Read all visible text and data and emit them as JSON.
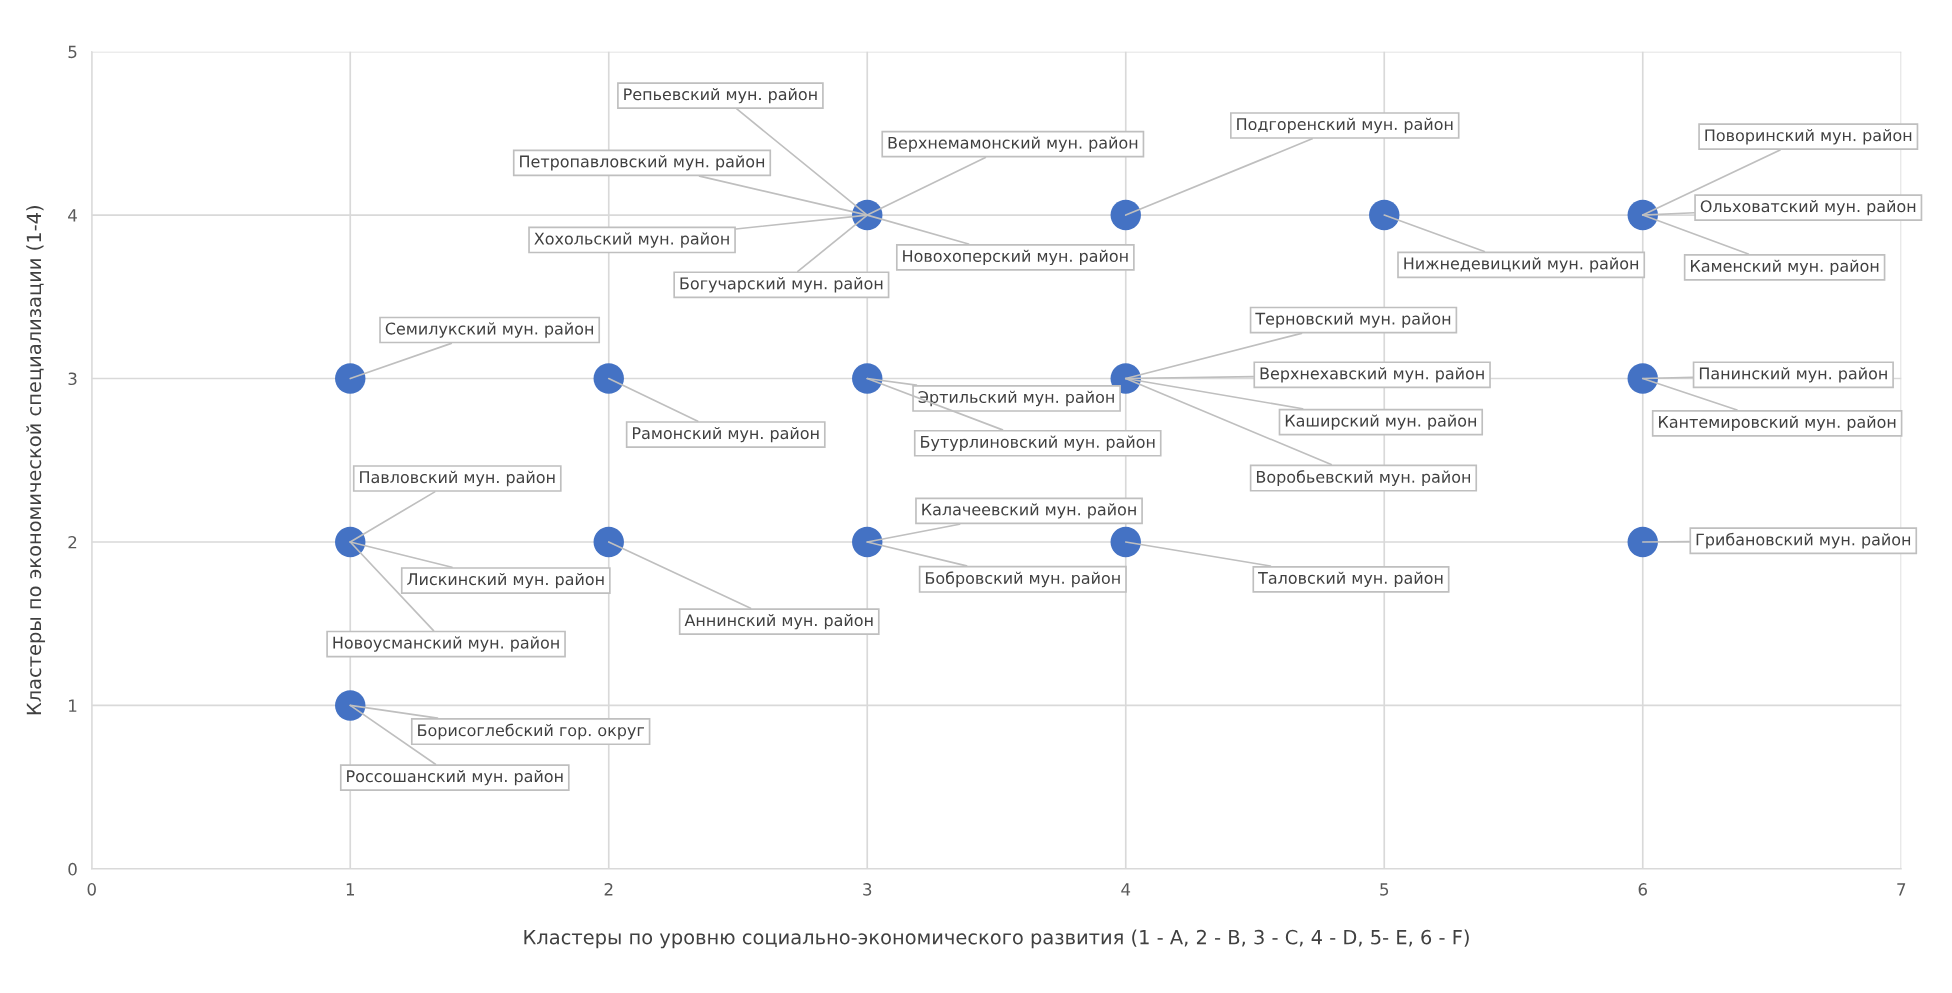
{
  "chart_data": {
    "type": "scatter",
    "xlabel": "Кластеры по уровню социально-экономического развития (1 - A, 2 - B, 3 - C, 4 - D, 5- E, 6 - F)",
    "ylabel": "Кластеры по экономической специализации (1-4)",
    "x": [
      1,
      2,
      3,
      4,
      6,
      1,
      2,
      3,
      4,
      6,
      1,
      3,
      4,
      5,
      6
    ],
    "series": [
      {
        "color": "#4472c4",
        "values": [
          3,
          3,
          3,
          3,
          3,
          2,
          2,
          2,
          2,
          2,
          1,
          4,
          4,
          4,
          4
        ]
      }
    ],
    "xlim": [
      0,
      7
    ],
    "xticks": [
      0,
      1,
      2,
      3,
      4,
      5,
      6,
      7
    ],
    "ylim": [
      0,
      5
    ],
    "yticks": [
      0,
      1,
      2,
      3,
      4,
      5
    ],
    "grid": true,
    "marker": "circle",
    "annotations": [
      {
        "text": "Репьевский мун. район",
        "x": 3,
        "y": 4
      },
      {
        "text": "Петропавловский мун. район",
        "x": 3,
        "y": 4
      },
      {
        "text": "Верхнемамонский мун. район",
        "x": 3,
        "y": 4
      },
      {
        "text": "Хохольский мун. район",
        "x": 3,
        "y": 4
      },
      {
        "text": "Новохоперский мун. район",
        "x": 3,
        "y": 4
      },
      {
        "text": "Богучарский мун. район",
        "x": 3,
        "y": 4
      },
      {
        "text": "Подгоренский мун. район",
        "x": 4,
        "y": 4
      },
      {
        "text": "Нижнедевицкий мун. район",
        "x": 5,
        "y": 4
      },
      {
        "text": "Поворинский мун. район",
        "x": 6,
        "y": 4
      },
      {
        "text": "Ольховатский мун. район",
        "x": 6,
        "y": 4
      },
      {
        "text": "Каменский мун. район",
        "x": 6,
        "y": 4
      },
      {
        "text": "Семилукский мун. район",
        "x": 1,
        "y": 3
      },
      {
        "text": "Рамонский мун. район",
        "x": 2,
        "y": 3
      },
      {
        "text": "Эртильский мун. район",
        "x": 3,
        "y": 3
      },
      {
        "text": "Бутурлиновский мун. район",
        "x": 3,
        "y": 3
      },
      {
        "text": "Терновский мун. район",
        "x": 4,
        "y": 3
      },
      {
        "text": "Верхнехавский мун. район",
        "x": 4,
        "y": 3
      },
      {
        "text": "Каширский мун. район",
        "x": 4,
        "y": 3
      },
      {
        "text": "Воробьевский мун. район",
        "x": 4,
        "y": 3
      },
      {
        "text": "Панинский мун. район",
        "x": 6,
        "y": 3
      },
      {
        "text": "Кантемировский мун. район",
        "x": 6,
        "y": 3
      },
      {
        "text": "Павловский мун. район",
        "x": 1,
        "y": 2
      },
      {
        "text": "Лискинский мун. район",
        "x": 1,
        "y": 2
      },
      {
        "text": "Новоусманский мун. район",
        "x": 1,
        "y": 2
      },
      {
        "text": "Аннинский мун. район",
        "x": 2,
        "y": 2
      },
      {
        "text": "Калачеевский мун. район",
        "x": 3,
        "y": 2
      },
      {
        "text": "Бобровский мун. район",
        "x": 3,
        "y": 2
      },
      {
        "text": "Таловский мун. район",
        "x": 4,
        "y": 2
      },
      {
        "text": "Грибановский мун. район",
        "x": 6,
        "y": 2
      },
      {
        "text": "Борисоглебский гор. округ",
        "x": 1,
        "y": 1
      },
      {
        "text": "Россошанский мун. район",
        "x": 1,
        "y": 1
      }
    ]
  }
}
